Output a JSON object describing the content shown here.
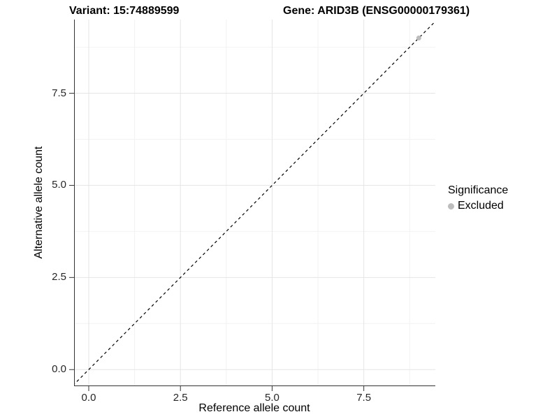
{
  "header": {
    "variant_title": "Variant: 15:74889599",
    "gene_title": "Gene: ARID3B (ENSG00000179361)"
  },
  "chart_data": {
    "type": "scatter",
    "xlabel": "Reference allele count",
    "ylabel": "Alternative allele count",
    "xlim": [
      -0.4,
      9.45
    ],
    "ylim": [
      -0.45,
      9.5
    ],
    "x_ticks": [
      0.0,
      2.5,
      5.0,
      7.5
    ],
    "y_ticks": [
      0.0,
      2.5,
      5.0,
      7.5
    ],
    "x_tick_labels": [
      "0.0",
      "2.5",
      "5.0",
      "7.5"
    ],
    "y_tick_labels": [
      "0.0",
      "2.5",
      "5.0",
      "7.5"
    ],
    "minor_x_ticks": [
      1.25,
      3.75,
      6.25,
      8.75
    ],
    "minor_y_ticks": [
      1.25,
      3.75,
      6.25,
      8.75
    ],
    "grid": true,
    "points": [
      {
        "x": 9,
        "y": 9,
        "significance": "Excluded"
      }
    ],
    "reference_line": {
      "style": "dashed",
      "slope": 1,
      "intercept": 0,
      "color": "#000000"
    },
    "legend": {
      "title": "Significance",
      "position": "right",
      "items": [
        {
          "label": "Excluded",
          "color": "#bdbdbd"
        }
      ]
    },
    "colors": {
      "major_grid": "#e5e5e5",
      "minor_grid": "#f2f2f2",
      "axis_line": "#333333",
      "tick_mark": "#333333",
      "point": "#bdbdbd",
      "background": "#ffffff"
    }
  }
}
